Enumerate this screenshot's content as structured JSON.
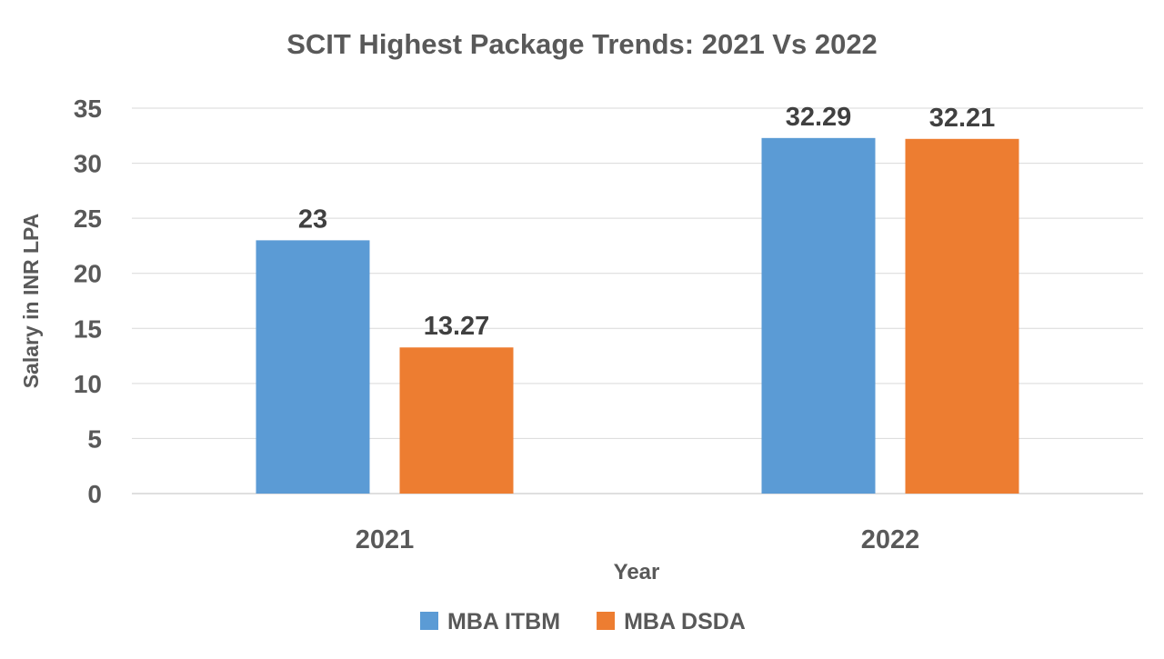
{
  "chart_data": {
    "type": "bar",
    "title": "SCIT Highest Package Trends: 2021 Vs 2022",
    "xlabel": "Year",
    "ylabel": "Salary in INR LPA",
    "categories": [
      "2021",
      "2022"
    ],
    "series": [
      {
        "name": "MBA ITBM",
        "values": [
          23,
          32.29
        ],
        "labels": [
          "23",
          "32.29"
        ],
        "color": "#5B9BD5"
      },
      {
        "name": "MBA DSDA",
        "values": [
          13.27,
          32.21
        ],
        "labels": [
          "13.27",
          "32.21"
        ],
        "color": "#ED7D31"
      }
    ],
    "ylim": [
      0,
      35
    ],
    "yticks": [
      0,
      5,
      10,
      15,
      20,
      25,
      30,
      35
    ],
    "grid": true,
    "legend": "bottom"
  }
}
